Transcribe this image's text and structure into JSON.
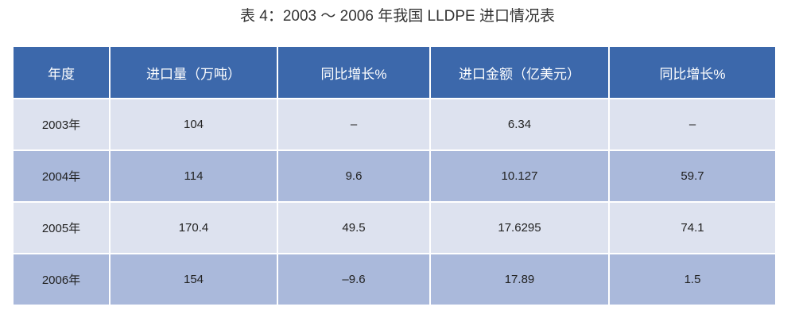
{
  "title": "表 4：2003 ～ 2006 年我国 LLDPE 进口情况表",
  "table": {
    "header": [
      "年度",
      "进口量（万吨）",
      "同比增长%",
      "进口金额（亿美元）",
      "同比增长%"
    ],
    "rows": [
      [
        "2003年",
        "104",
        "–",
        "6.34",
        "–"
      ],
      [
        "2004年",
        "114",
        "9.6",
        "10.127",
        "59.7"
      ],
      [
        "2005年",
        "170.4",
        "49.5",
        "17.6295",
        "74.1"
      ],
      [
        "2006年",
        "154",
        "–9.6",
        "17.89",
        "1.5"
      ]
    ]
  }
}
